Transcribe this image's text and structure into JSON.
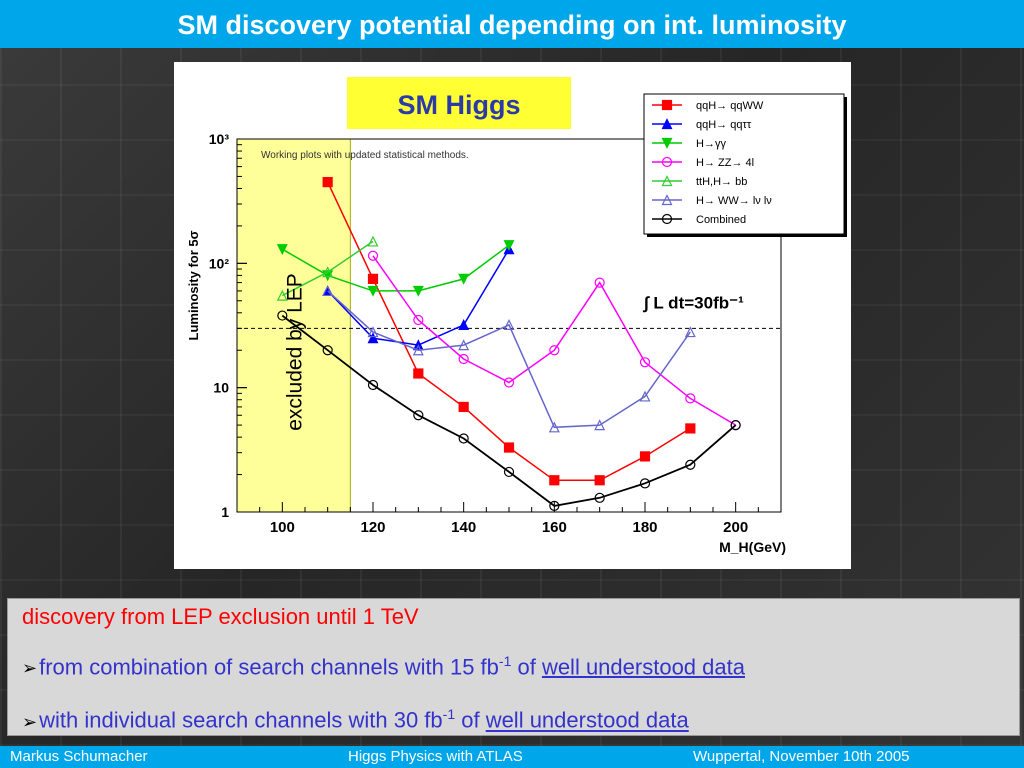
{
  "slide": {
    "title": "SM discovery potential depending on int. luminosity"
  },
  "text_box": {
    "line1": "discovery from LEP exclusion until 1 TeV",
    "line2_pre": "from combination of search channels with 15  fb",
    "line2_exp": "-1",
    "line2_mid": " of ",
    "line2_link": "well understood data",
    "line3_pre": "with individual search channels with 30  fb",
    "line3_exp": "-1",
    "line3_mid": " of ",
    "line3_link": "well understood data"
  },
  "footer": {
    "author": "Markus  Schumacher",
    "talk": "Higgs Physics  with ATLAS",
    "venue": "Wuppertal, November 10th 2005"
  },
  "colors": {
    "accent": "#00a6ea",
    "lep_band": "#ffff99",
    "title_box": "#ffff33"
  },
  "chart_data": {
    "type": "line",
    "title": "SM Higgs",
    "note": "Working plots with updated statistical methods.",
    "xlabel": "M_H(GeV)",
    "ylabel": "Luminosity for 5σ",
    "xlim": [
      90,
      210
    ],
    "ylim": [
      1,
      1000
    ],
    "yscale": "log",
    "xticks": [
      "100",
      "120",
      "140",
      "160",
      "180",
      "200"
    ],
    "yticks": [
      "1",
      "10",
      "10²",
      "10³"
    ],
    "lep_band": {
      "label": "excluded by LEP",
      "x_range": [
        90,
        115
      ]
    },
    "reference_line": {
      "y": 30,
      "label": "∫ L dt=30fb⁻¹"
    },
    "legend_position": "top-right",
    "series": [
      {
        "name": "qqH→ qqWW",
        "color": "#ff0000",
        "marker": "square",
        "x": [
          110,
          120,
          130,
          140,
          150,
          160,
          170,
          180,
          190
        ],
        "y": [
          450,
          75,
          13,
          7,
          3.3,
          1.8,
          1.8,
          2.8,
          4.7
        ]
      },
      {
        "name": "qqH→ qqττ",
        "color": "#0000ff",
        "marker": "triangle-up",
        "x": [
          110,
          120,
          130,
          140,
          150
        ],
        "y": [
          60,
          25,
          22,
          32,
          130
        ]
      },
      {
        "name": "H→γγ",
        "color": "#00cc00",
        "marker": "triangle-down",
        "x": [
          100,
          110,
          120,
          130,
          140,
          150
        ],
        "y": [
          130,
          80,
          60,
          60,
          75,
          140
        ]
      },
      {
        "name": "H→ ZZ→ 4l",
        "color": "#ff00ff",
        "marker": "circle-open",
        "x": [
          120,
          130,
          140,
          150,
          160,
          170,
          180,
          190,
          200
        ],
        "y": [
          115,
          35,
          17,
          11,
          20,
          70,
          16,
          8.2,
          5
        ]
      },
      {
        "name": "ttH,H→ bb",
        "color": "#33cc33",
        "marker": "triangle-up-open",
        "x": [
          100,
          110,
          120
        ],
        "y": [
          55,
          85,
          150
        ]
      },
      {
        "name": "H→ WW→ lν lν",
        "color": "#6666cc",
        "marker": "triangle-up-open",
        "x": [
          110,
          120,
          130,
          140,
          150,
          160,
          170,
          180,
          190
        ],
        "y": [
          60,
          28,
          20,
          22,
          32,
          4.8,
          5,
          8.5,
          28
        ]
      },
      {
        "name": "Combined",
        "color": "#000000",
        "marker": "circle-open",
        "x": [
          100,
          110,
          120,
          130,
          140,
          150,
          160,
          170,
          180,
          190,
          200
        ],
        "y": [
          38,
          20,
          10.5,
          6,
          3.9,
          2.1,
          1.12,
          1.3,
          1.7,
          2.4,
          5
        ]
      }
    ]
  }
}
